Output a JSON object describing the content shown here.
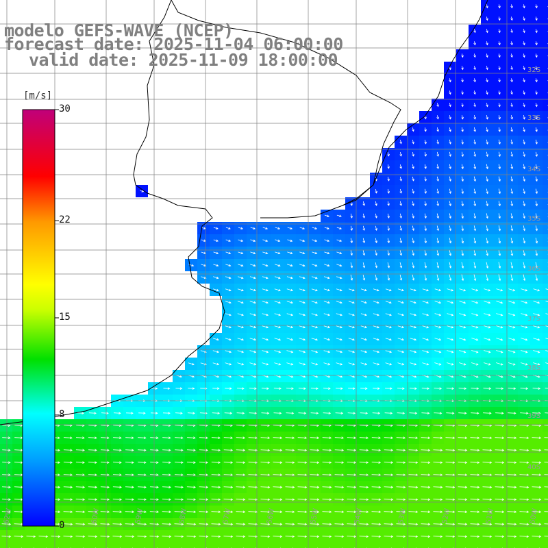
{
  "title": {
    "line1": "modelo GEFS-WAVE (NCEP)",
    "line2": "forecast date: 2025-11-04 06:00:00",
    "line3": "valid date: 2025-11-09 18:00:00"
  },
  "colorbar": {
    "unit": "[m/s]",
    "min": 0,
    "max": 30,
    "ticks": [
      {
        "value": 30,
        "label": "30"
      },
      {
        "value": 22,
        "label": "22"
      },
      {
        "value": 15,
        "label": "15"
      },
      {
        "value": 8,
        "label": "8"
      },
      {
        "value": 0,
        "label": "0"
      }
    ],
    "colors": [
      "#0000ff",
      "#00a0ff",
      "#00ffff",
      "#00e000",
      "#ffff00",
      "#ff9900",
      "#ff0000",
      "#c0007a"
    ]
  },
  "map": {
    "lat_labels": [
      "32S",
      "33S",
      "34S",
      "35S",
      "36S",
      "37S",
      "38S",
      "39S",
      "40S"
    ],
    "lon_labels": [
      "62W",
      "61W",
      "60W",
      "59W",
      "58W",
      "57W",
      "56W",
      "55W",
      "54W",
      "53W",
      "52W",
      "51W",
      "50W"
    ],
    "grid_color": "#808080",
    "coast_color": "#000000",
    "land_color": "#ffffff"
  }
}
